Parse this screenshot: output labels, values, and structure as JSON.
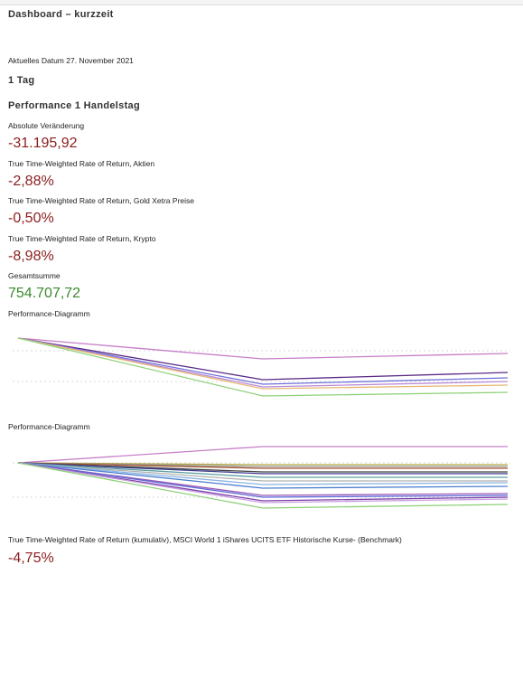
{
  "header": {
    "title": "Dashboard – kurzzeit"
  },
  "date": "Aktuelles Datum 27. November 2021",
  "section": "1 Tag",
  "subsection": "Performance 1 Handelstag",
  "metrics": [
    {
      "label": "Absolute Veränderung",
      "value": "-31.195,92",
      "color": "#8b1d1d"
    },
    {
      "label": "True Time-Weighted Rate of Return, Aktien",
      "value": "-2,88%",
      "color": "#8b1d1d"
    },
    {
      "label": "True Time-Weighted Rate of Return, Gold Xetra Preise",
      "value": "-0,50%",
      "color": "#8b1d1d"
    },
    {
      "label": "True Time-Weighted Rate of Return, Krypto",
      "value": "-8,98%",
      "color": "#8b1d1d"
    },
    {
      "label": "Gesamtsumme",
      "value": "754.707,72",
      "color": "#3b8a2c"
    }
  ],
  "chart_data": [
    {
      "type": "line",
      "title": "Performance-Diagramm",
      "categories": [
        null,
        null,
        null
      ],
      "ylim": [
        -7,
        1
      ],
      "series": [
        {
          "color": "#c77fc7",
          "values": [
            0,
            -2.3,
            -1.7
          ]
        },
        {
          "color": "#5b2a86",
          "values": [
            0,
            -4.6,
            -3.8
          ]
        },
        {
          "color": "#6f6fd8",
          "values": [
            0,
            -5.1,
            -4.4
          ]
        },
        {
          "color": "#b98ad6",
          "values": [
            0,
            -5.4,
            -4.8
          ]
        },
        {
          "color": "#e6b873",
          "values": [
            0,
            -5.6,
            -5.2
          ]
        },
        {
          "color": "#8fd17a",
          "values": [
            0,
            -6.4,
            -6.0
          ]
        }
      ]
    },
    {
      "type": "line",
      "title": "Performance-Diagramm",
      "categories": [
        null,
        null,
        null
      ],
      "ylim": [
        -6,
        2.5
      ],
      "series": [
        {
          "color": "#c77fc7",
          "values": [
            0,
            1.8,
            1.8
          ]
        },
        {
          "color": "#b5a642",
          "values": [
            0,
            -0.2,
            -0.2
          ]
        },
        {
          "color": "#999999",
          "values": [
            0,
            -0.4,
            -0.4
          ]
        },
        {
          "color": "#a0522d",
          "values": [
            0,
            -0.6,
            -0.6
          ]
        },
        {
          "color": "#444444",
          "values": [
            0,
            -1.0,
            -1.0
          ]
        },
        {
          "color": "#3b3b8f",
          "values": [
            0,
            -1.2,
            -1.2
          ]
        },
        {
          "color": "#5aa0a0",
          "values": [
            0,
            -1.6,
            -1.6
          ]
        },
        {
          "color": "#b0b0b0",
          "values": [
            0,
            -2.0,
            -2.0
          ]
        },
        {
          "color": "#8ab4e0",
          "values": [
            0,
            -2.4,
            -2.2
          ]
        },
        {
          "color": "#4a7fd0",
          "values": [
            0,
            -2.8,
            -2.6
          ]
        },
        {
          "color": "#9b59b6",
          "values": [
            0,
            -3.6,
            -3.4
          ]
        },
        {
          "color": "#5c6bd8",
          "values": [
            0,
            -3.8,
            -3.6
          ]
        },
        {
          "color": "#7e3fa8",
          "values": [
            0,
            -4.2,
            -3.8
          ]
        },
        {
          "color": "#c9a0e0",
          "values": [
            0,
            -4.4,
            -4.0
          ]
        },
        {
          "color": "#8fd17a",
          "values": [
            0,
            -5.0,
            -4.6
          ]
        }
      ]
    }
  ],
  "benchmark": {
    "label": "True Time-Weighted Rate of Return (kumulativ), MSCI World 1  iShares UCITS ETF Historische Kurse- (Benchmark)",
    "value": "-4,75%",
    "color": "#8b1d1d"
  }
}
